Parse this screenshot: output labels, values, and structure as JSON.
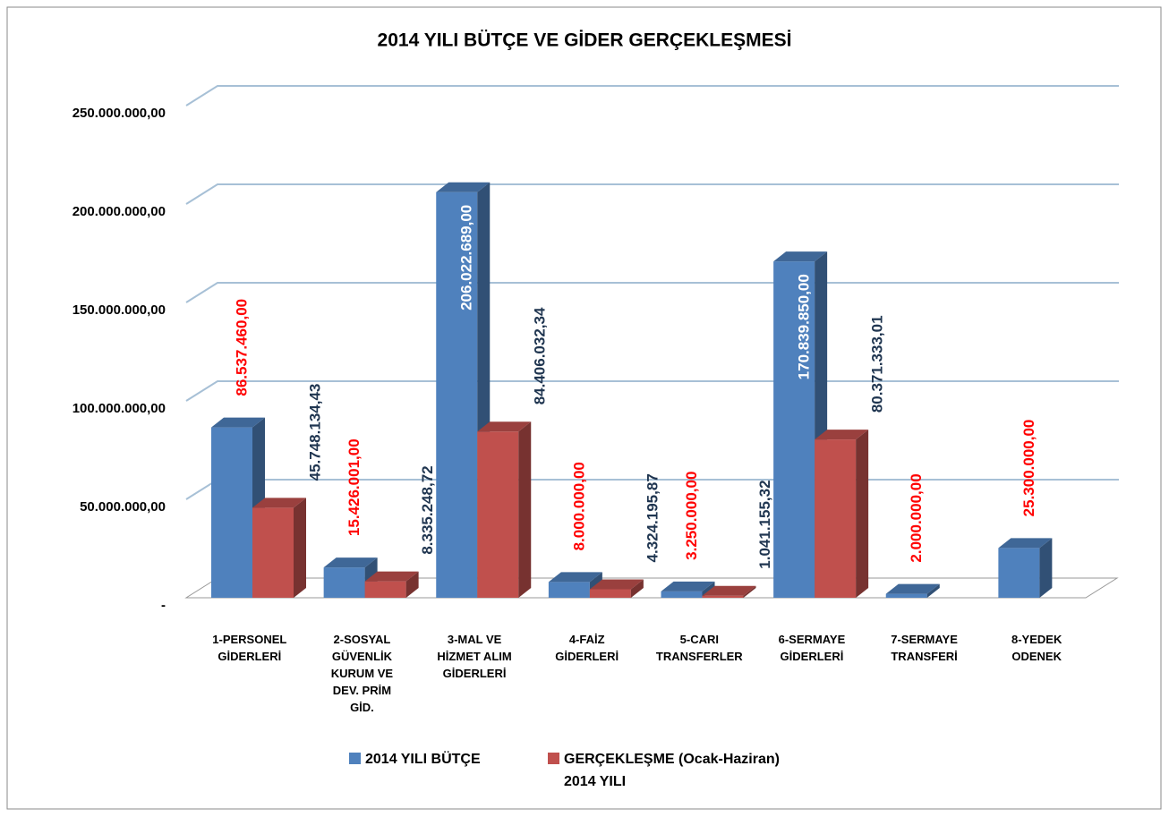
{
  "chart_data": {
    "type": "bar3d",
    "title": "2014 YILI BÜTÇE VE GİDER GERÇEKLEŞMESİ",
    "categories": [
      "1-PERSONEL\nGİDERLERİ",
      "2-SOSYAL\nGÜVENLİK\nKURUM VE\nDEV. PRİM\nGİD.",
      "3-MAL VE\nHİZMET ALIM\nGİDERLERİ",
      "4-FAİZ\nGİDERLERİ",
      "5-CARI\nTRANSFERLER",
      "6-SERMAYE\nGİDERLERİ",
      "7-SERMAYE\nTRANSFERİ",
      "8-YEDEK\nODENEK"
    ],
    "series": [
      {
        "name": "2014 YILI BÜTÇE",
        "color": "#4f81bd",
        "values": [
          86537460,
          15426001,
          206022689,
          8000000,
          3250000,
          170839850,
          2000000,
          25300000
        ],
        "value_labels": [
          "86.537.460,00",
          "15.426.001,00",
          "206.022.689,00",
          "8.000.000,00",
          "3.250.000,00",
          "170.839.850,00",
          "2.000.000,00",
          "25.300.000,00"
        ]
      },
      {
        "name": "GERÇEKLEŞME (Ocak-Haziran)\n2014 YILI",
        "color": "#c0504d",
        "values": [
          45748134.43,
          8335248.72,
          84406032.34,
          4324195.87,
          1041155.32,
          80371333.01,
          null,
          null
        ],
        "value_labels": [
          "45.748.134,43",
          "8.335.248,72",
          "84.406.032,34",
          "4.324.195,87",
          "1.041.155,32",
          "80.371.333,01",
          null,
          null
        ]
      }
    ],
    "ylim": [
      0,
      250000000
    ],
    "yticks": [
      {
        "value": 0,
        "label": "-"
      },
      {
        "value": 50000000,
        "label": "50.000.000,00"
      },
      {
        "value": 100000000,
        "label": "100.000.000,00"
      },
      {
        "value": 150000000,
        "label": "150.000.000,00"
      },
      {
        "value": 200000000,
        "label": "200.000.000,00"
      },
      {
        "value": 250000000,
        "label": "250.000.000,00"
      }
    ],
    "grid": true
  }
}
